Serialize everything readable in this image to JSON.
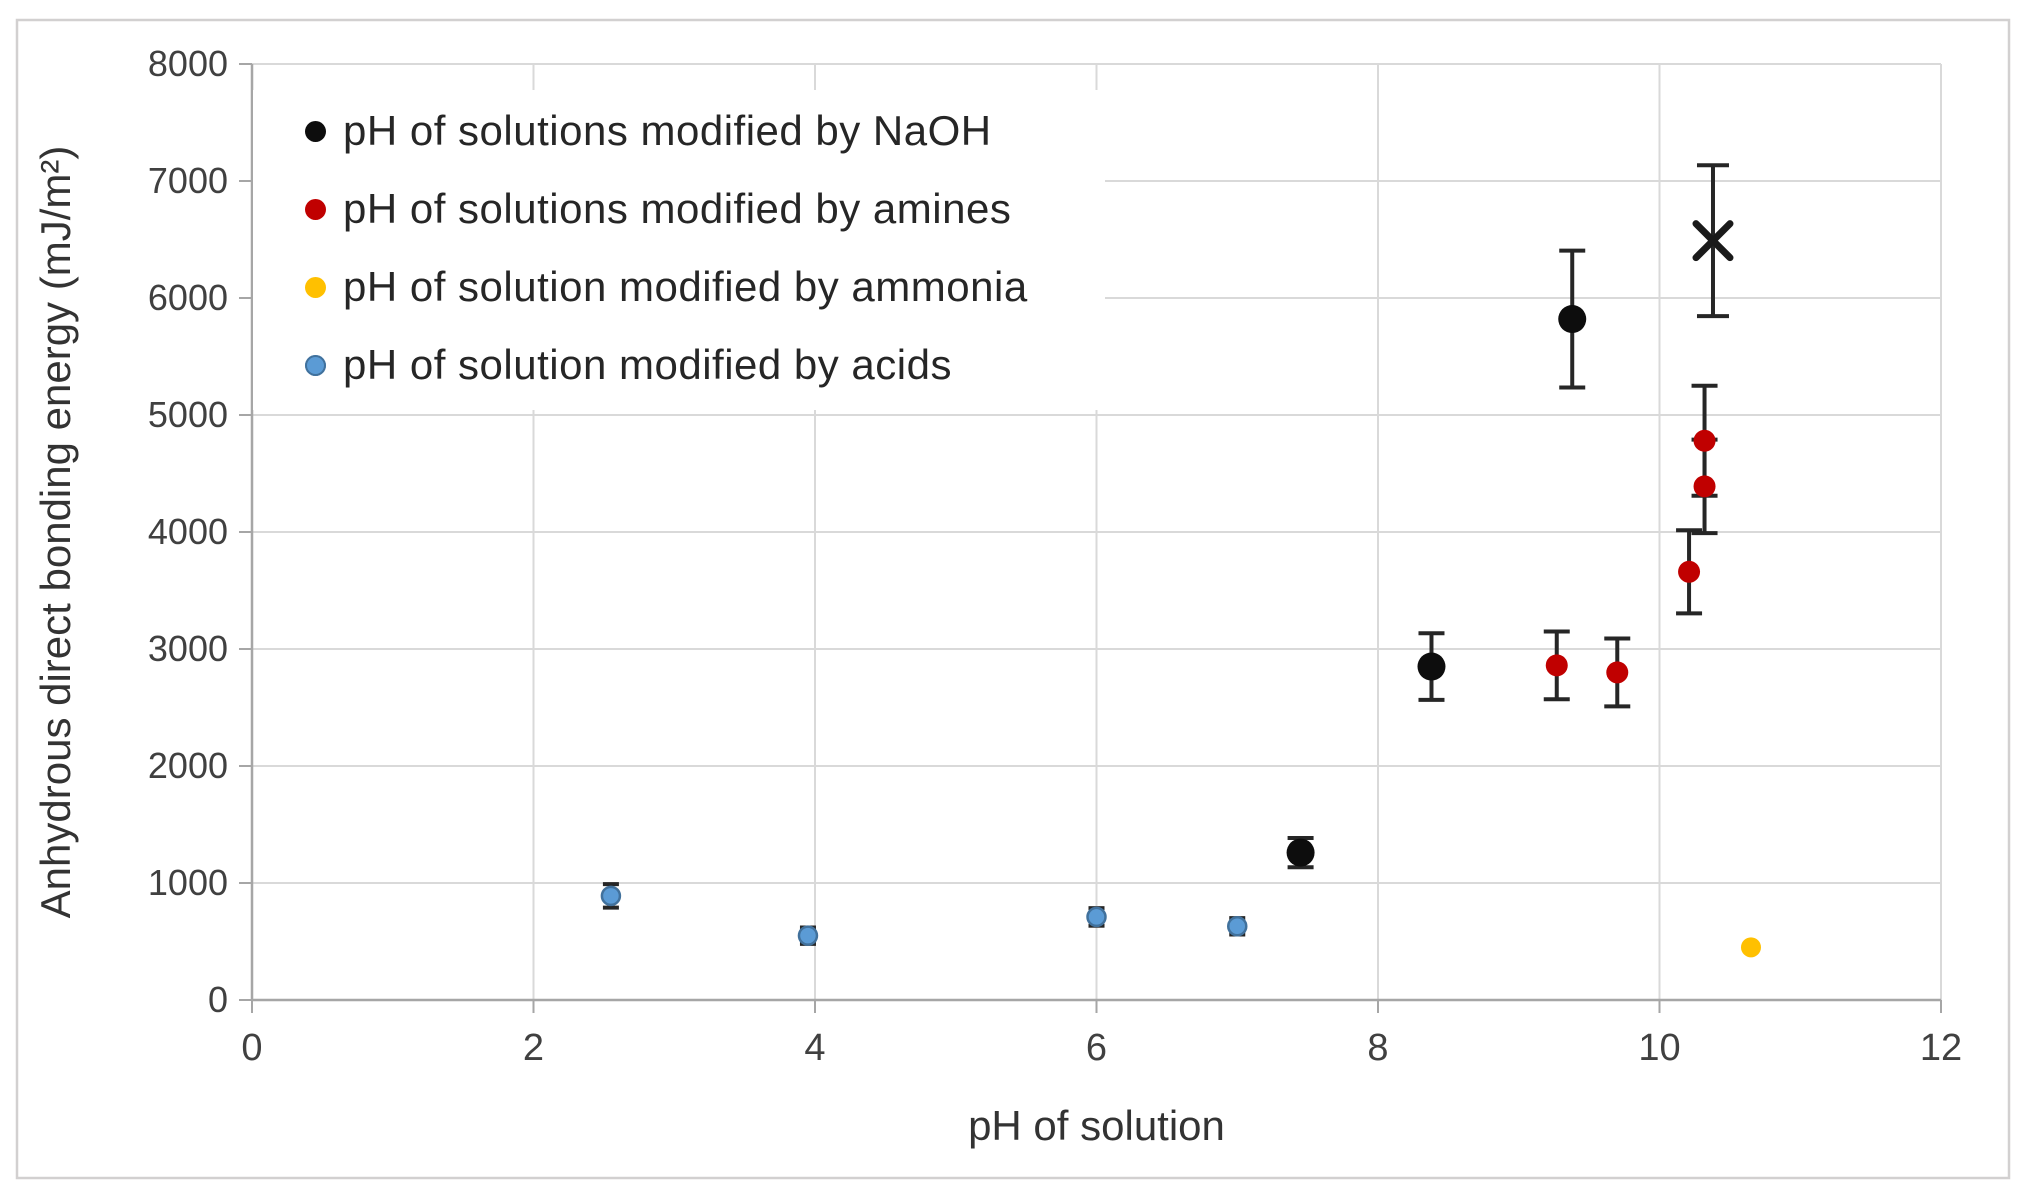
{
  "chart_data": {
    "type": "scatter",
    "title": "",
    "xlabel": "pH of solution",
    "ylabel": "Anhydrous direct bonding energy (mJ/m²)",
    "xlim": [
      0,
      12
    ],
    "ylim": [
      0,
      8000
    ],
    "x_ticks": [
      0,
      2,
      4,
      6,
      8,
      10,
      12
    ],
    "y_ticks": [
      0,
      1000,
      2000,
      3000,
      4000,
      5000,
      6000,
      7000,
      8000
    ],
    "grid": true,
    "legend_position": "inside-top-left",
    "error_bar_color": "#262626",
    "axis_color": "#a6a6a6",
    "gridline_color": "#d9d9d9",
    "frame_color": "#d2d0d0",
    "tick_label_color": "#404040",
    "series": [
      {
        "name": "pH of solutions modified by NaOH",
        "color": "#0d0d0d",
        "marker": "circle",
        "points": [
          {
            "x": 7.45,
            "y": 1260,
            "err": 125
          },
          {
            "x": 8.38,
            "y": 2850,
            "err": 285
          },
          {
            "x": 9.38,
            "y": 5820,
            "err": 585
          }
        ]
      },
      {
        "name": "pH of solutions modified by amines",
        "color": "#c00000",
        "marker": "circle",
        "points": [
          {
            "x": 9.27,
            "y": 2860,
            "err": 290
          },
          {
            "x": 9.7,
            "y": 2800,
            "err": 290
          },
          {
            "x": 10.21,
            "y": 3660,
            "err": 355
          },
          {
            "x": 10.32,
            "y": 4390,
            "err": 400
          },
          {
            "x": 10.32,
            "y": 4780,
            "err": 470
          }
        ]
      },
      {
        "name": "pH of solution modified by ammonia",
        "color": "#ffc000",
        "marker": "circle",
        "points": [
          {
            "x": 10.65,
            "y": 450,
            "err": 40
          }
        ]
      },
      {
        "name": "pH of solution modified by acids",
        "color": "#5b9bd5",
        "marker_border": "#41719c",
        "marker": "circle",
        "points": [
          {
            "x": 2.55,
            "y": 890,
            "err": 100
          },
          {
            "x": 3.95,
            "y": 550,
            "err": 70
          },
          {
            "x": 6.0,
            "y": 710,
            "err": 75
          },
          {
            "x": 7.0,
            "y": 630,
            "err": 70
          }
        ]
      }
    ],
    "special_points": [
      {
        "marker": "x",
        "color": "#1a1a1a",
        "x": 10.38,
        "y": 6490,
        "err": 645,
        "in_legend": false
      }
    ]
  }
}
